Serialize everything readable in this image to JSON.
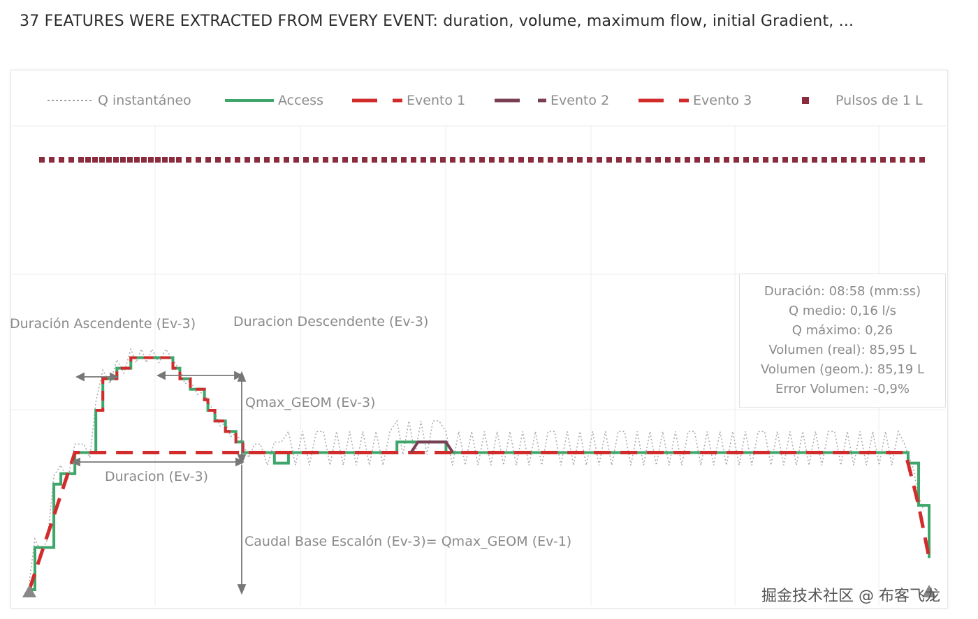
{
  "title": "37 FEATURES WERE EXTRACTED FROM EVERY EVENT: duration, volume, maximum flow, initial Gradient, ...",
  "legend": [
    {
      "label": "Q instantáneo",
      "style": "dotted",
      "color": "#9aa0a6",
      "icon": "dotted-line-icon"
    },
    {
      "label": "Access",
      "style": "solid",
      "color": "#3fa66b",
      "icon": "solid-line-icon"
    },
    {
      "label": "Evento 1",
      "style": "dashed",
      "color": "#d22b2b",
      "icon": "dashed-line-icon"
    },
    {
      "label": "Evento 2",
      "style": "dashed",
      "color": "#7a3f55",
      "icon": "dashed-line-icon"
    },
    {
      "label": "Evento 3",
      "style": "dashed",
      "color": "#d22b2b",
      "icon": "dashed-line-icon"
    },
    {
      "label": "Pulsos de 1 L",
      "style": "marker",
      "color": "#8b2c3e",
      "icon": "square-marker-icon"
    }
  ],
  "info": {
    "duracion": "Duración: 08:58 (mm:ss)",
    "q_medio": "Q medio: 0,16 l/s",
    "q_maximo": "Q máximo: 0,26",
    "volumen_real": "Volumen (real): 85,95 L",
    "volumen_geom": "Volumen (geom.): 85,19 L",
    "error_volumen": "Error Volumen: -0,9%"
  },
  "annotations": {
    "duracion_ascendente": "Duración Ascendente (Ev-3)",
    "duracion_descendente": "Duracion Descendente (Ev-3)",
    "qmax_geom": "Qmax_GEOM (Ev-3)",
    "duracion": "Duracion (Ev-3)",
    "caudal_base": "Caudal Base Escalón (Ev-3)= Qmax_GEOM (Ev-1)"
  },
  "watermark": "掘金技术社区 @ 布客飞龙",
  "chart_data": {
    "type": "line",
    "title": "",
    "xlabel": "",
    "ylabel": "",
    "grid": true,
    "legend_position": "top",
    "series": [
      {
        "name": "Access",
        "x": [
          0,
          0.08,
          0.35,
          0.45,
          0.65,
          0.78,
          0.95,
          1.05,
          1.25,
          1.45,
          1.6,
          1.75,
          2.05,
          2.15,
          2.3,
          2.5,
          2.55,
          2.65,
          2.8,
          2.95,
          3.05,
          3.3,
          3.5,
          3.6,
          3.7,
          3.9,
          4.2,
          4.95,
          5.15,
          5.25,
          5.85,
          5.95,
          6.5,
          7.5,
          8.5,
          9.5,
          10.5,
          11.5,
          12.5,
          12.55,
          12.7,
          12.85
        ],
        "y": [
          0,
          0.04,
          0.1,
          0.11,
          0.13,
          0.13,
          0.17,
          0.2,
          0.21,
          0.22,
          0.22,
          0.22,
          0.21,
          0.2,
          0.19,
          0.18,
          0.17,
          0.16,
          0.15,
          0.14,
          0.13,
          0.13,
          0.12,
          0.12,
          0.13,
          0.13,
          0.13,
          0.13,
          0.13,
          0.14,
          0.14,
          0.13,
          0.13,
          0.13,
          0.13,
          0.13,
          0.13,
          0.13,
          0.13,
          0.12,
          0.08,
          0.03
        ]
      },
      {
        "name": "Evento 1",
        "x": [
          0,
          0.3,
          0.55,
          0.65,
          2.8,
          3.05,
          3.6,
          3.75,
          4.2,
          5.9,
          6.5,
          12.5,
          12.55,
          12.7,
          12.85
        ],
        "y": [
          0,
          0.06,
          0.11,
          0.13,
          0.13,
          0.13,
          0.13,
          0.13,
          0.13,
          0.13,
          0.13,
          0.13,
          0.12,
          0.08,
          0.03
        ]
      },
      {
        "name": "Evento 2",
        "x": [
          5.5,
          5.85,
          5.95
        ],
        "y": [
          0.13,
          0.14,
          0.14
        ]
      },
      {
        "name": "Evento 3",
        "x": [
          0.95,
          1.05,
          1.25,
          1.45,
          1.75,
          2.05,
          2.15,
          2.3,
          2.5,
          2.55,
          2.65,
          2.8,
          2.95,
          3.05
        ],
        "y": [
          0.17,
          0.2,
          0.21,
          0.22,
          0.22,
          0.21,
          0.2,
          0.19,
          0.18,
          0.17,
          0.16,
          0.15,
          0.14,
          0.13
        ]
      }
    ]
  }
}
